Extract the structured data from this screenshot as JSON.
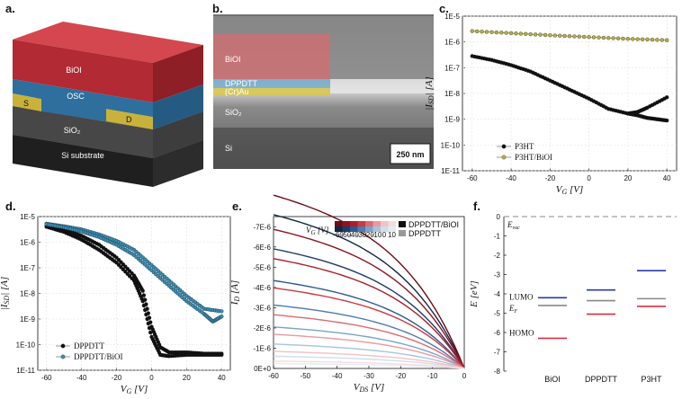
{
  "panels": {
    "a": "a.",
    "b": "b.",
    "c": "c.",
    "d": "d.",
    "e": "e.",
    "f": "f."
  },
  "colors": {
    "bioi": "#c0323a",
    "osc": "#2e6f9e",
    "electrode": "#c9b23c",
    "sio2": "#4a4a4a",
    "si": "#2a2a2a",
    "p3ht": "#111111",
    "p3ht_bioi": "#b6b046",
    "dppdtt": "#111111",
    "dppdtt_bioi": "#3a8fb7",
    "lumo": "#2a3aa8",
    "homo": "#d83040",
    "ef": "#888888"
  },
  "device": {
    "bioi": "BiOI",
    "osc": "OSC",
    "source": "S",
    "drain": "D",
    "sio2": "SiO₂",
    "substrate": "Si substrate"
  },
  "sem": {
    "bioi": "BiOI",
    "dppdtt": "DPPDTT",
    "au": "(Cr)Au",
    "sio2": "SiO₂",
    "si": "Si",
    "scalebar": "250 nm"
  },
  "chart_data": [
    {
      "id": "c",
      "type": "scatter",
      "xlabel": "VG [V]",
      "ylabel": "|ISD| [A]",
      "xlim": [
        -65,
        45
      ],
      "ylim_log": [
        -11,
        -5
      ],
      "xticks": [
        "-60",
        "-40",
        "-20",
        "0",
        "20",
        "40"
      ],
      "yticks": [
        "1E-5",
        "1E-6",
        "1E-7",
        "1E-8",
        "1E-9",
        "1E-10",
        "1E-11"
      ],
      "series": [
        {
          "name": "P3HT",
          "x": [
            -60,
            -50,
            -40,
            -30,
            -20,
            -10,
            0,
            10,
            20,
            25,
            30,
            40
          ],
          "y_log": [
            -6.55,
            -6.7,
            -6.9,
            -7.15,
            -7.5,
            -7.85,
            -8.2,
            -8.6,
            -8.78,
            -8.72,
            -8.55,
            -8.15
          ]
        },
        {
          "name": "P3HT",
          "x": [
            20,
            25,
            30,
            35,
            40
          ],
          "y_log": [
            -8.78,
            -8.85,
            -8.95,
            -9.0,
            -9.05
          ]
        },
        {
          "name": "P3HT/BiOI",
          "x": [
            -60,
            -40,
            -20,
            0,
            20,
            40
          ],
          "y_log": [
            -5.58,
            -5.66,
            -5.74,
            -5.81,
            -5.88,
            -5.93
          ]
        }
      ],
      "legend": [
        "P3HT",
        "P3HT/BiOI"
      ]
    },
    {
      "id": "d",
      "type": "scatter",
      "xlabel": "VG [V]",
      "ylabel": "|ISD| [A]",
      "xlim": [
        -65,
        45
      ],
      "ylim_log": [
        -11,
        -5
      ],
      "xticks": [
        "-60",
        "-40",
        "-20",
        "0",
        "20",
        "40"
      ],
      "yticks": [
        "1E-5",
        "1E-6",
        "1E-7",
        "1E-8",
        "1E-9",
        "1E-10",
        "1E-11"
      ],
      "series": [
        {
          "name": "DPPDTT",
          "x": [
            -60,
            -50,
            -40,
            -30,
            -20,
            -10,
            -5,
            0,
            5,
            10,
            20,
            30,
            40
          ],
          "y_log": [
            -5.35,
            -5.5,
            -5.75,
            -6.1,
            -6.6,
            -7.3,
            -7.9,
            -9.3,
            -10.1,
            -10.3,
            -10.3,
            -10.35,
            -10.35
          ]
        },
        {
          "name": "DPPDTT",
          "x": [
            -60,
            -50,
            -40,
            -30,
            -20,
            -10,
            -5,
            0,
            5,
            10,
            20,
            30,
            40
          ],
          "y_log": [
            -5.4,
            -5.6,
            -5.9,
            -6.3,
            -6.8,
            -7.5,
            -8.3,
            -9.7,
            -10.4,
            -10.45,
            -10.4,
            -10.4,
            -10.4
          ]
        },
        {
          "name": "DPPDTT/BiOI",
          "x": [
            -60,
            -50,
            -40,
            -30,
            -20,
            -10,
            0,
            10,
            20,
            30,
            40
          ],
          "y_log": [
            -5.28,
            -5.38,
            -5.5,
            -5.7,
            -5.95,
            -6.3,
            -6.9,
            -7.5,
            -8.1,
            -8.6,
            -8.7
          ]
        },
        {
          "name": "DPPDTT/BiOI",
          "x": [
            -60,
            -50,
            -40,
            -30,
            -20,
            -10,
            0,
            10,
            20,
            30,
            35,
            40
          ],
          "y_log": [
            -5.3,
            -5.42,
            -5.58,
            -5.8,
            -6.1,
            -6.5,
            -7.1,
            -7.7,
            -8.3,
            -8.8,
            -9.1,
            -8.9
          ]
        }
      ],
      "legend": [
        "DPPDTT",
        "DPPDTT/BiOI"
      ]
    },
    {
      "id": "e",
      "type": "line",
      "xlabel": "VDS [V]",
      "ylabel": "ID [A]",
      "xlim": [
        -60,
        0
      ],
      "ylim": [
        0,
        -7.5e-06
      ],
      "xticks": [
        "-60",
        "-50",
        "-40",
        "-30",
        "-20",
        "-10",
        "0"
      ],
      "yticks": [
        "-7E-6",
        "-6E-6",
        "-5E-6",
        "-4E-6",
        "-3E-6",
        "-2E-6",
        "-1E-6",
        "0E+0"
      ],
      "legend_title": "VG [V]",
      "legend_values": [
        "-60",
        "-50",
        "-40",
        "-30",
        "-20",
        "-10",
        "0",
        "10"
      ],
      "legend_series": [
        "DPPDTT/BiOI",
        "DPPDTT"
      ],
      "series_bioi_Isat_uA": [
        7.1,
        5.7,
        4.5,
        3.3,
        2.2,
        1.4,
        0.7,
        0.3
      ],
      "series_pristine_Isat_uA": [
        6.3,
        4.9,
        3.6,
        2.6,
        1.7,
        1.0,
        0.5,
        0.2
      ]
    },
    {
      "id": "f",
      "type": "energy-diagram",
      "ylabel": "E [eV]",
      "ylim": [
        -8,
        0
      ],
      "yticks": [
        "0",
        "-1",
        "-2",
        "-3",
        "-4",
        "-5",
        "-6",
        "-7",
        "-8"
      ],
      "categories": [
        "BiOI",
        "DPPDTT",
        "P3HT"
      ],
      "lumo": [
        -4.2,
        -3.8,
        -2.8
      ],
      "ef": [
        -4.6,
        -4.35,
        -4.25
      ],
      "homo": [
        -6.3,
        -5.05,
        -4.65
      ],
      "labels": {
        "evac": "Evac",
        "lumo": "LUMO",
        "ef": "EF",
        "homo": "HOMO"
      }
    }
  ]
}
